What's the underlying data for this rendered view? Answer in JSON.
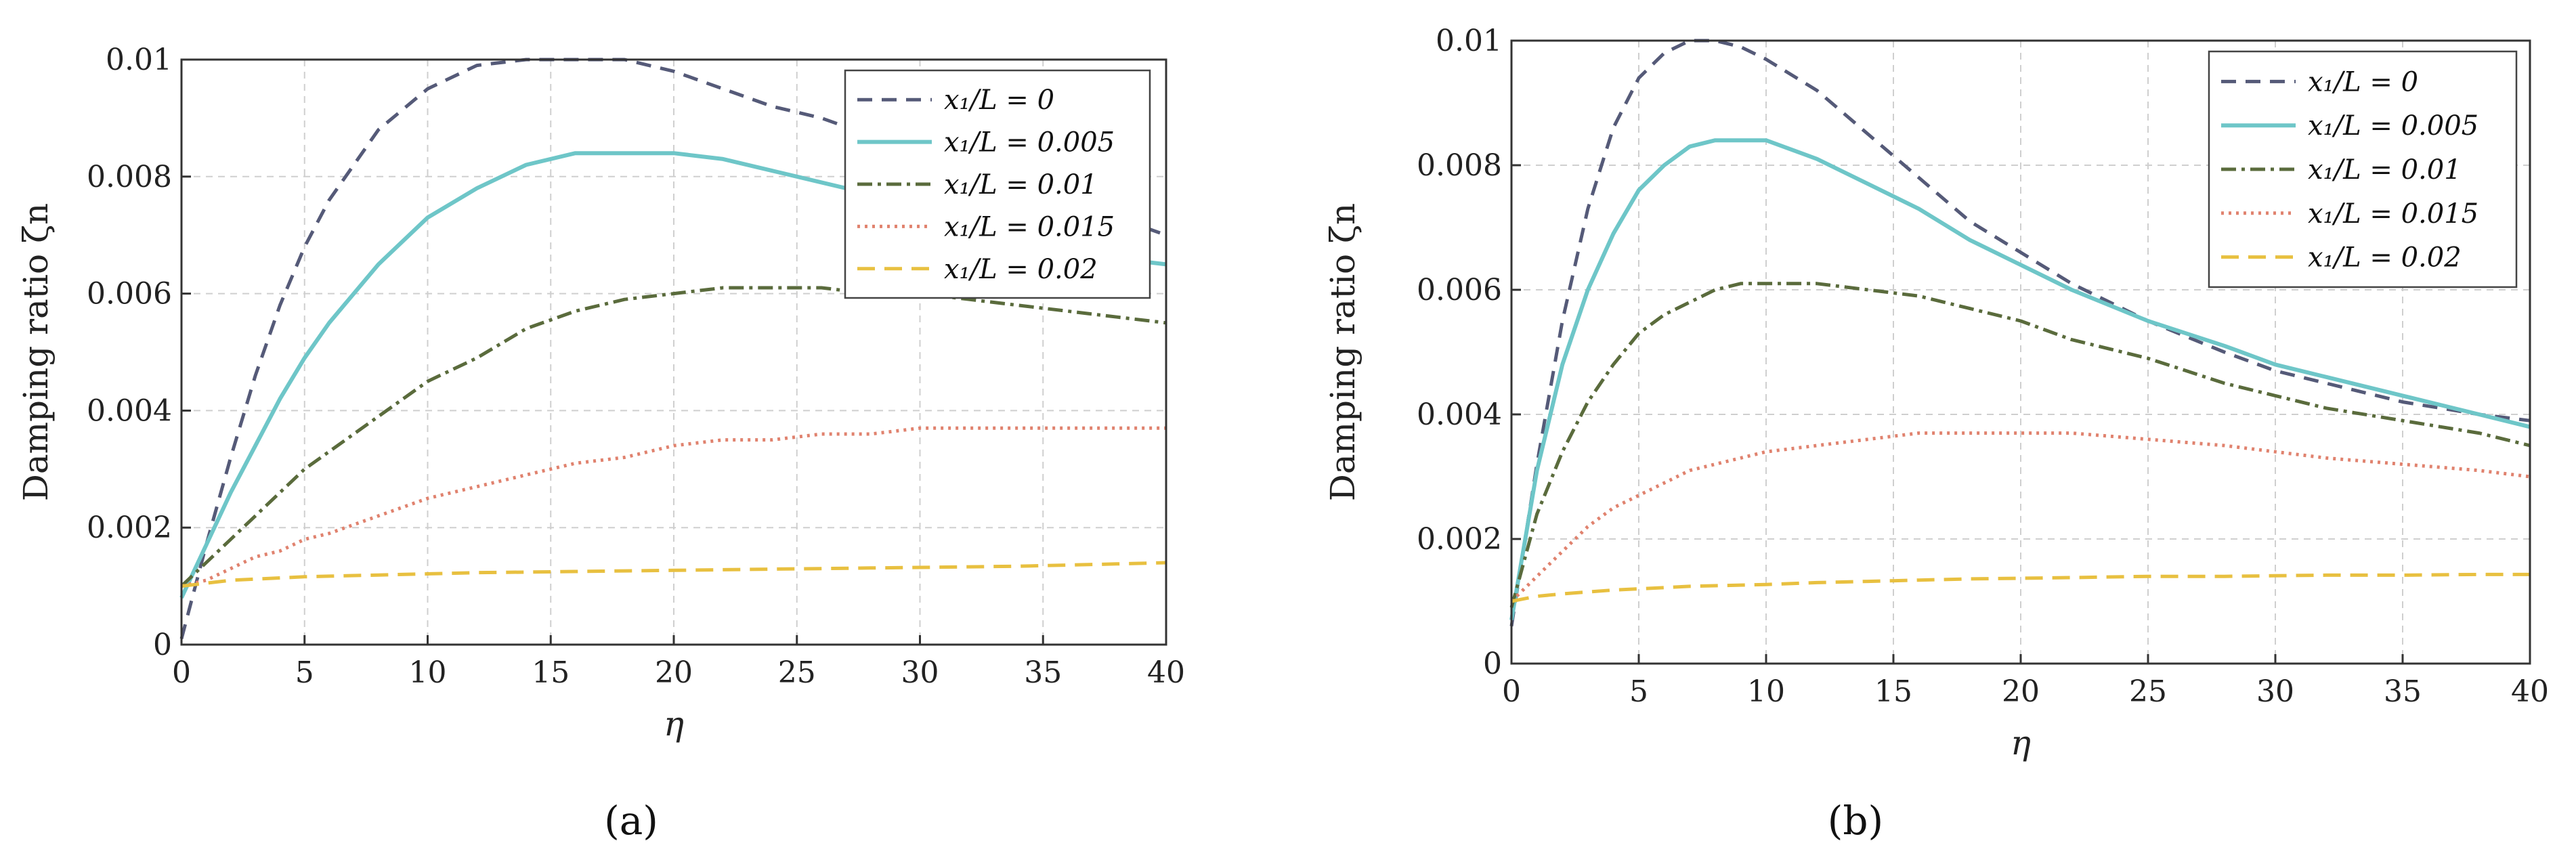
{
  "colors": {
    "s0": "#555a78",
    "s1": "#6ec6c8",
    "s2": "#5a6b3c",
    "s3": "#e0826e",
    "s4": "#e8c040"
  },
  "chart_data": [
    {
      "type": "line",
      "panel_label": "a",
      "caption": "(a)",
      "title": "",
      "xlabel": "η",
      "ylabel": "Damping ratio ζn",
      "xlim": [
        0,
        40
      ],
      "ylim": [
        0,
        0.01
      ],
      "xticks": [
        "0",
        "5",
        "10",
        "15",
        "20",
        "25",
        "30",
        "35",
        "40"
      ],
      "yticks": [
        "0",
        "0.002",
        "0.004",
        "0.006",
        "0.008",
        "0.01"
      ],
      "grid": true,
      "legend_position": "top-right",
      "x": [
        0,
        1,
        2,
        3,
        4,
        5,
        6,
        8,
        10,
        12,
        14,
        16,
        18,
        20,
        22,
        24,
        26,
        28,
        30,
        32,
        34,
        36,
        38,
        40
      ],
      "series": [
        {
          "name": "x1/L = 0",
          "legend": "x₁/L = 0",
          "color_key": "s0",
          "dash": "22 14",
          "values": [
            0.0001,
            0.0017,
            0.0032,
            0.0046,
            0.0058,
            0.0068,
            0.0076,
            0.0088,
            0.0095,
            0.0099,
            0.01,
            0.01,
            0.01,
            0.0098,
            0.0095,
            0.0092,
            0.009,
            0.0087,
            0.0084,
            0.0081,
            0.0079,
            0.0076,
            0.0073,
            0.007
          ]
        },
        {
          "name": "x1/L = 0.005",
          "legend": "x₁/L = 0.005",
          "color_key": "s1",
          "dash": "",
          "values": [
            0.0008,
            0.0017,
            0.0026,
            0.0034,
            0.0042,
            0.0049,
            0.0055,
            0.0065,
            0.0073,
            0.0078,
            0.0082,
            0.0084,
            0.0084,
            0.0084,
            0.0083,
            0.0081,
            0.0079,
            0.0077,
            0.0075,
            0.0072,
            0.007,
            0.0068,
            0.0066,
            0.0065
          ]
        },
        {
          "name": "x1/L = 0.01",
          "legend": "x₁/L = 0.01",
          "color_key": "s2",
          "dash": "22 8 5 8",
          "values": [
            0.001,
            0.0014,
            0.0018,
            0.0022,
            0.0026,
            0.003,
            0.0033,
            0.0039,
            0.0045,
            0.0049,
            0.0054,
            0.0057,
            0.0059,
            0.006,
            0.0061,
            0.0061,
            0.0061,
            0.006,
            0.006,
            0.0059,
            0.0058,
            0.0057,
            0.0056,
            0.0055
          ]
        },
        {
          "name": "x1/L = 0.015",
          "legend": "x₁/L = 0.015",
          "color_key": "s3",
          "dash": "4 7",
          "values": [
            0.001,
            0.0011,
            0.0013,
            0.0015,
            0.0016,
            0.0018,
            0.0019,
            0.0022,
            0.0025,
            0.0027,
            0.0029,
            0.0031,
            0.0032,
            0.0034,
            0.0035,
            0.0035,
            0.0036,
            0.0036,
            0.0037,
            0.0037,
            0.0037,
            0.0037,
            0.0037,
            0.0037
          ]
        },
        {
          "name": "x1/L = 0.02",
          "legend": "x₁/L = 0.02",
          "color_key": "s4",
          "dash": "26 14",
          "values": [
            0.001,
            0.00105,
            0.0011,
            0.00112,
            0.00114,
            0.00116,
            0.00117,
            0.00119,
            0.00121,
            0.00123,
            0.00124,
            0.00125,
            0.00126,
            0.00127,
            0.00128,
            0.00129,
            0.0013,
            0.00131,
            0.00132,
            0.00133,
            0.00134,
            0.00136,
            0.00138,
            0.0014
          ]
        }
      ]
    },
    {
      "type": "line",
      "panel_label": "b",
      "caption": "(b)",
      "title": "",
      "xlabel": "η",
      "ylabel": "Damping ratio ζn",
      "xlim": [
        0,
        40
      ],
      "ylim": [
        0,
        0.01
      ],
      "xticks": [
        "0",
        "5",
        "10",
        "15",
        "20",
        "25",
        "30",
        "35",
        "40"
      ],
      "yticks": [
        "0",
        "0.002",
        "0.004",
        "0.006",
        "0.008",
        "0.01"
      ],
      "grid": true,
      "legend_position": "top-right",
      "x": [
        0,
        1,
        2,
        3,
        4,
        5,
        6,
        7,
        8,
        9,
        10,
        12,
        14,
        16,
        18,
        20,
        22,
        25,
        28,
        30,
        32,
        35,
        38,
        40
      ],
      "series": [
        {
          "name": "x1/L = 0",
          "legend": "x₁/L = 0",
          "color_key": "s0",
          "dash": "22 14",
          "values": [
            0.0006,
            0.0032,
            0.0055,
            0.0073,
            0.0086,
            0.0094,
            0.0098,
            0.01,
            0.01,
            0.0099,
            0.0097,
            0.0092,
            0.0085,
            0.0078,
            0.0071,
            0.0066,
            0.0061,
            0.0055,
            0.005,
            0.0047,
            0.0045,
            0.0042,
            0.004,
            0.0039
          ]
        },
        {
          "name": "x1/L = 0.005",
          "legend": "x₁/L = 0.005",
          "color_key": "s1",
          "dash": "",
          "values": [
            0.0007,
            0.0031,
            0.0048,
            0.006,
            0.0069,
            0.0076,
            0.008,
            0.0083,
            0.0084,
            0.0084,
            0.0084,
            0.0081,
            0.0077,
            0.0073,
            0.0068,
            0.0064,
            0.006,
            0.0055,
            0.0051,
            0.0048,
            0.0046,
            0.0043,
            0.004,
            0.0038
          ]
        },
        {
          "name": "x1/L = 0.01",
          "legend": "x₁/L = 0.01",
          "color_key": "s2",
          "dash": "22 8 5 8",
          "values": [
            0.0009,
            0.0024,
            0.0034,
            0.0042,
            0.0048,
            0.0053,
            0.0056,
            0.0058,
            0.006,
            0.0061,
            0.0061,
            0.0061,
            0.006,
            0.0059,
            0.0057,
            0.0055,
            0.0052,
            0.0049,
            0.0045,
            0.0043,
            0.0041,
            0.0039,
            0.0037,
            0.0035
          ]
        },
        {
          "name": "x1/L = 0.015",
          "legend": "x₁/L = 0.015",
          "color_key": "s3",
          "dash": "4 7",
          "values": [
            0.001,
            0.0014,
            0.0018,
            0.0022,
            0.0025,
            0.0027,
            0.0029,
            0.0031,
            0.0032,
            0.0033,
            0.0034,
            0.0035,
            0.0036,
            0.0037,
            0.0037,
            0.0037,
            0.0037,
            0.0036,
            0.0035,
            0.0034,
            0.0033,
            0.0032,
            0.0031,
            0.003
          ]
        },
        {
          "name": "x1/L = 0.02",
          "legend": "x₁/L = 0.02",
          "color_key": "s4",
          "dash": "26 14",
          "values": [
            0.001,
            0.00108,
            0.00112,
            0.00115,
            0.00118,
            0.0012,
            0.00122,
            0.00124,
            0.00125,
            0.00126,
            0.00127,
            0.0013,
            0.00132,
            0.00134,
            0.00136,
            0.00137,
            0.00138,
            0.0014,
            0.0014,
            0.00141,
            0.00142,
            0.00142,
            0.00143,
            0.00143
          ]
        }
      ]
    }
  ]
}
